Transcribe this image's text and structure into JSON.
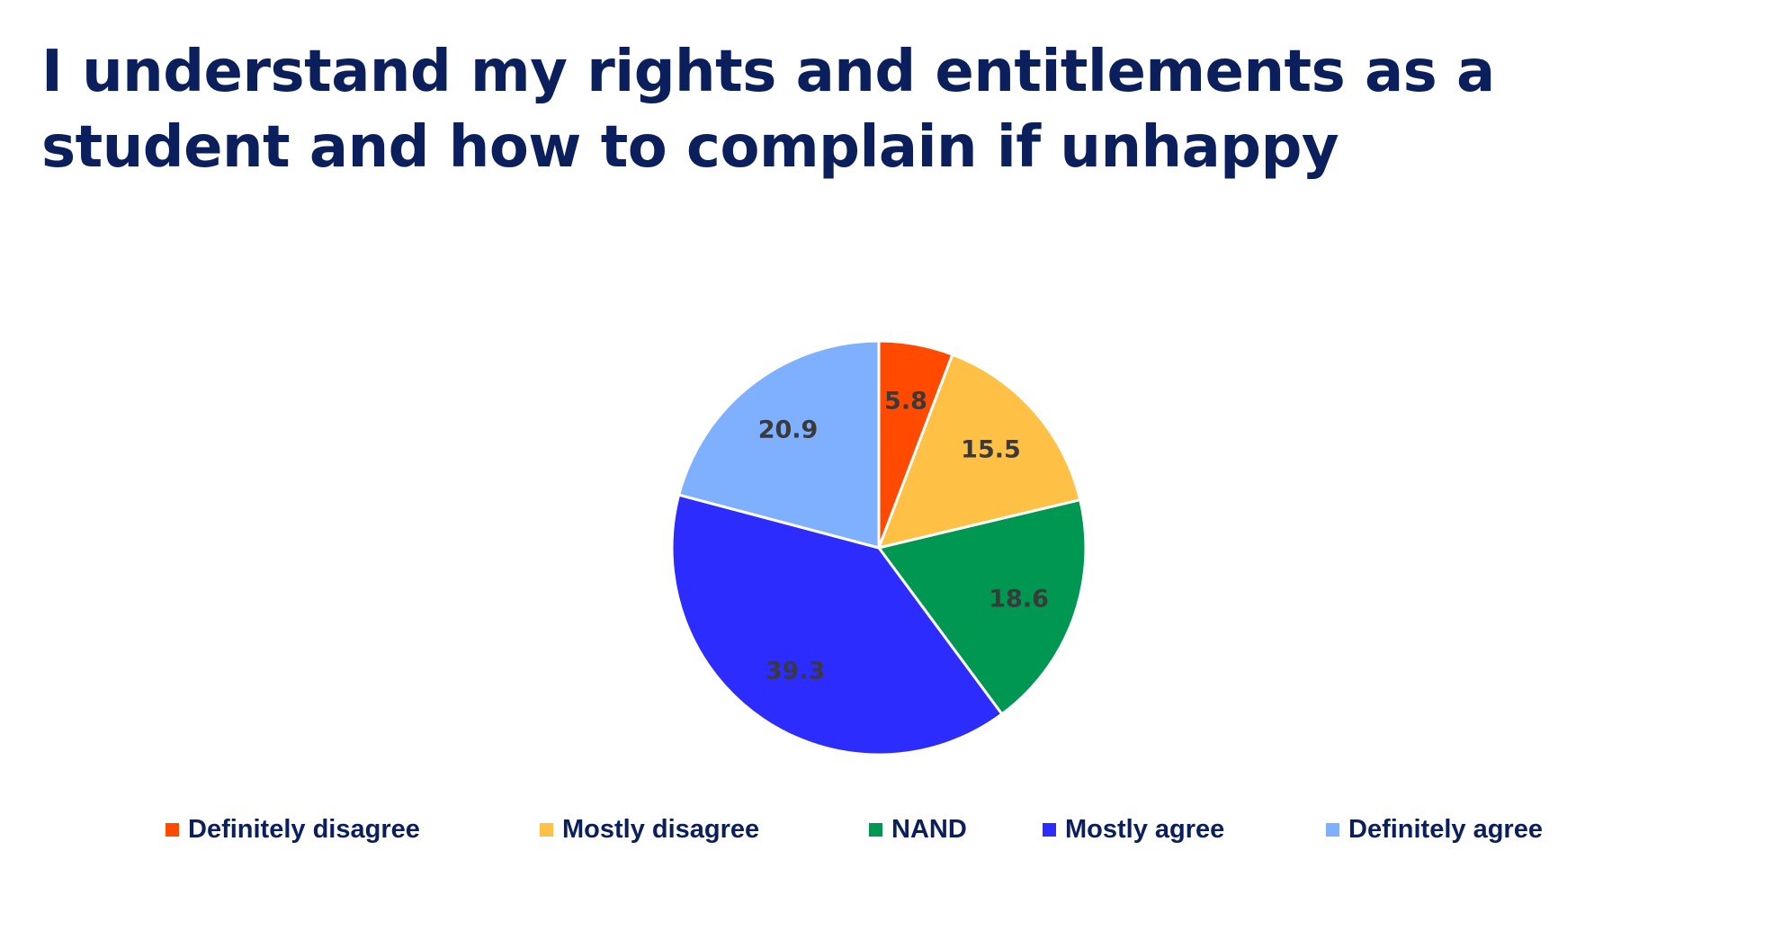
{
  "chart_data": {
    "type": "pie",
    "title": "I understand my rights and entitlements as a student and how to complain if unhappy",
    "categories": [
      "Definitely disagree",
      "Mostly disagree",
      "NAND",
      "Mostly agree",
      "Definitely agree"
    ],
    "values": [
      5.8,
      15.5,
      18.6,
      39.3,
      20.9
    ],
    "data_labels": [
      "5.8",
      "15.5",
      "18.6",
      "39.3",
      "20.9"
    ],
    "colors": [
      "#ff4a00",
      "#ffc046",
      "#009752",
      "#2c2cff",
      "#7eb0ff"
    ],
    "start_angle": "12 o'clock",
    "direction": "clockwise",
    "legend_position": "bottom",
    "label_color": "#3a3a3a"
  }
}
